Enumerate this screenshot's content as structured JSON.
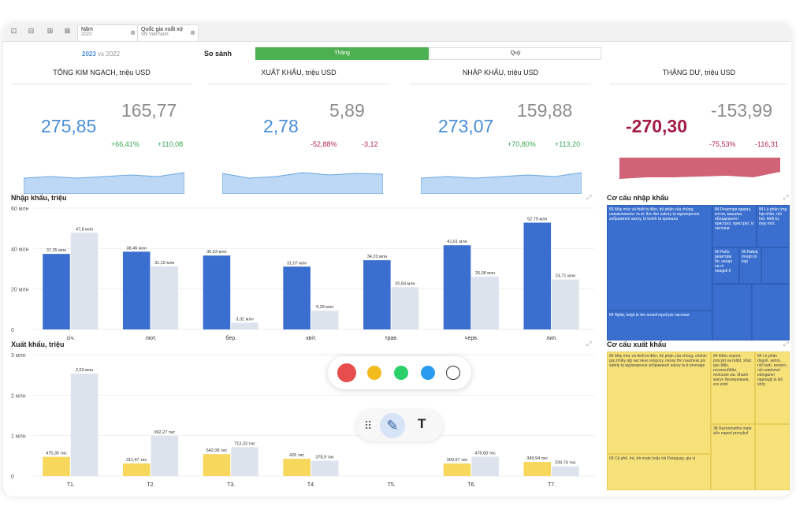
{
  "toolbar_filters": [
    {
      "label": "Năm",
      "value": "2023"
    },
    {
      "label": "Quốc gia xuất xứ",
      "value": "VN Việt Nam"
    }
  ],
  "year_select": {
    "current": "2023",
    "vs": "vs",
    "previous": "2022"
  },
  "compare": {
    "label": "So sánh",
    "options": [
      "Tháng",
      "Quý"
    ],
    "selected": "Tháng"
  },
  "kpis": [
    {
      "title": "TỔNG KIM NGẠCH, triệu USD",
      "current": "275,85",
      "previous": "165,77",
      "pct": "+66,41%",
      "abs": "+110,08",
      "trend": "up",
      "spark": [
        20,
        22,
        20,
        22,
        24,
        22,
        27
      ]
    },
    {
      "title": "XUẤT KHẨU, triệu USD",
      "current": "2,78",
      "previous": "5,89",
      "pct": "-52,88%",
      "abs": "-3,12",
      "trend": "down",
      "spark": [
        26,
        20,
        22,
        27,
        24,
        26,
        25
      ]
    },
    {
      "title": "NHẬP KHẨU, triệu USD",
      "current": "273,07",
      "previous": "159,88",
      "pct": "+70,80%",
      "abs": "+113,20",
      "trend": "up",
      "spark": [
        20,
        22,
        20,
        22,
        24,
        22,
        27
      ]
    },
    {
      "title": "THẶNG DƯ, triệu USD",
      "current": "-270,30",
      "previous": "-153,99",
      "pct": "-75,53%",
      "abs": "-116,31",
      "trend": "down",
      "spark": [
        27,
        25,
        25,
        24,
        23,
        25,
        18
      ]
    }
  ],
  "colors": {
    "cur_blue": "#3a6fcf",
    "prev_grey": "#dde3ec",
    "exp_yellow": "#f7d85c",
    "green": "#4caf50",
    "surplus_red": "#c9485f"
  },
  "import_chart": {
    "title": "Nhập khẩu, triệu",
    "chart_data": {
      "type": "bar",
      "categories": [
        "січ.",
        "лют.",
        "бер.",
        "квіт.",
        "трав.",
        "черв.",
        "лип."
      ],
      "series": [
        {
          "values": [
            37.35,
            38.45,
            36.53,
            31.07,
            34.23,
            41.61,
            52.79
          ],
          "labels": [
            "37,35 млн",
            "38,45 млн",
            "36,53 млн",
            "31,07 млн",
            "34,23 млн",
            "41,61 млн",
            "52,79 млн"
          ]
        },
        {
          "values": [
            47.8,
            31.15,
            3.32,
            9.28,
            20.94,
            26.08,
            24.71
          ],
          "labels": [
            "47,8 млн",
            "31,15 млн",
            "3,32 млн",
            "9,28 млн",
            "20,94 млн",
            "26,08 млн",
            "24,71 млн"
          ]
        }
      ],
      "yticks": [
        0,
        20,
        40,
        60
      ],
      "ytick_labels": [
        "0",
        "20 млн",
        "40 млн",
        "60 млн"
      ],
      "ylim": [
        0,
        60
      ]
    }
  },
  "export_chart": {
    "title": "Xuất khẩu, triệu",
    "chart_data": {
      "type": "bar",
      "categories": [
        "T1.",
        "T2.",
        "T3.",
        "T4.",
        "T5.",
        "T6.",
        "T7."
      ],
      "series": [
        {
          "values": [
            0.47535,
            0.31147,
            0.54208,
            0.426,
            0.0,
            0.30997,
            0.34994
          ],
          "labels": [
            "475,35 тис",
            "311,47 тис",
            "542,08 тис",
            "426 тис",
            "",
            "309,97 тис",
            "349,94 тис"
          ]
        },
        {
          "values": [
            2.53,
            0.99227,
            0.71333,
            0.3789,
            0.0,
            0.47868,
            0.23974
          ],
          "labels": [
            "2,53 млн",
            "992,27 тис",
            "713,33 тис",
            "378,9 тис",
            "",
            "478,68 тис",
            "239,74 тис"
          ]
        }
      ],
      "yticks": [
        0,
        1,
        2,
        3
      ],
      "ytick_labels": [
        "0",
        "1 млн",
        "2 млн",
        "3 млн"
      ],
      "ylim": [
        0,
        3
      ]
    }
  },
  "import_structure": {
    "title": "Cơ cấu nhập khẩu",
    "cells": [
      "85 Máy móc và thiết bị điện, bộ phận của chúng, неважливоmе та ві. the dier satezy ta відтворення зображеної saxvy, Is kotoh ta приналa",
      "84 Реактори ядерні, котли, машини, обладнання і пристрої, пристрої; їх частини",
      "84 Lò phản ứng hạt nhân, nồi hơi, thiết bị, máy móc",
      "90 Рабо реактори бо, нешрі на лі neagell ő",
      "90 Rabal, mregn lo logi",
      "84 Nytta, netpi te ten anaoll юроlі pix частини",
      "",
      "",
      ""
    ]
  },
  "export_structure": {
    "title": "Cơ cấu xuất khẩu",
    "cells": [
      "85 Máy móc và thiết bị điện, bộ phận của chúng, chdoin gia zmiky alg частини songozy, neosy thn naumeкs gix safety ta відтворення зображеної saxvy ta tr pnenage",
      "84 lõitec repoпі; proсykt vа mãbt, xhãc gia rãtlls, reconouĩdõte, molossie sia. 3hanh магун безперевани, ero копіi",
      "84 Lò phản dogoil, setrm, nồl ham, neowrv, nồi reвdomol еbiлgвлеi приладіi lа kiõ xhõc",
      "38 Raznomathis mate або naped prooykuf",
      "09 Cà phê, trà, trà mate hoặc trà Paraguay, gia vị",
      ""
    ]
  },
  "annot_colors": [
    "#e84d4d",
    "#f4bb1c",
    "#2bd06a",
    "#2a9cf0",
    "#ffffff"
  ],
  "annot_tools": {
    "pen": "✎",
    "text": "T",
    "grip": "⠿"
  },
  "topbar_icons": [
    "⊡",
    "⊟",
    "⊞",
    "⊠"
  ]
}
